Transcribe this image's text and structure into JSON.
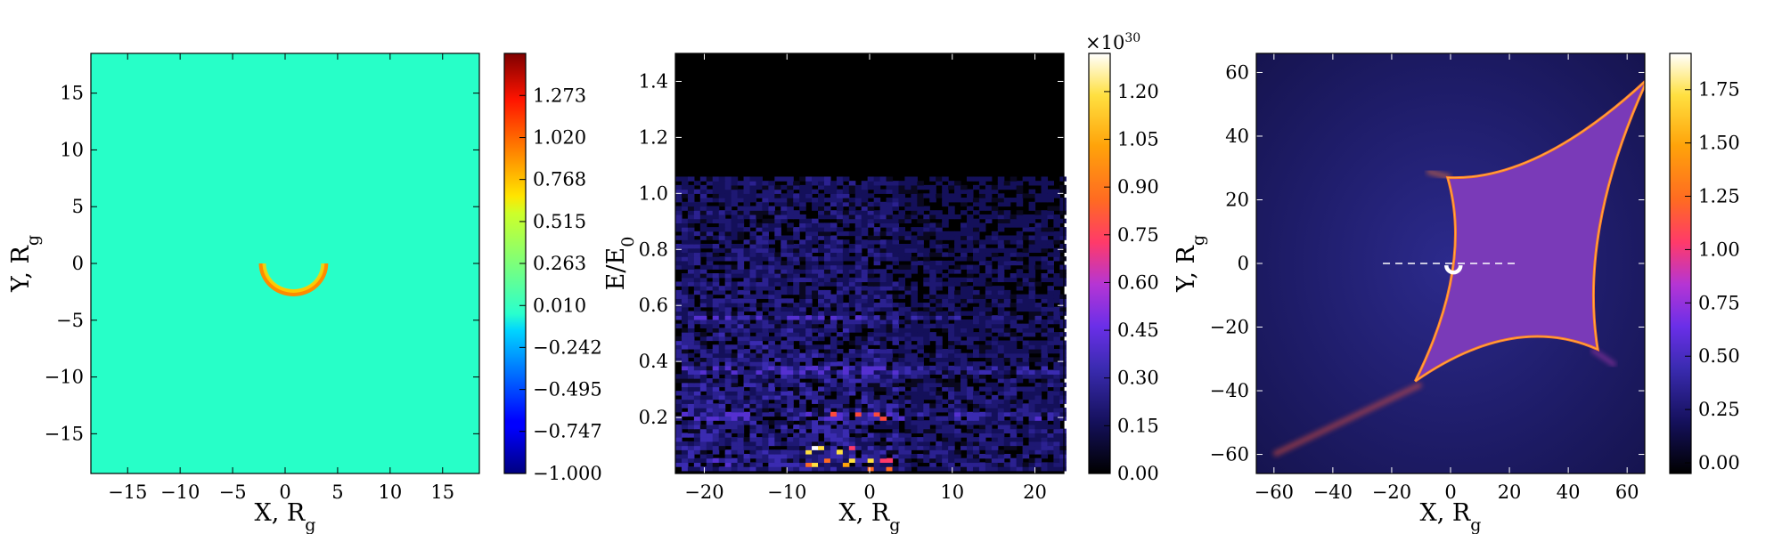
{
  "chart_data": [
    {
      "type": "heatmap",
      "xlabel": "X, R",
      "xlabel_sub": "g",
      "ylabel": "Y, R",
      "ylabel_sub": "g",
      "xlim": [
        -18.5,
        18.5
      ],
      "ylim": [
        -18.5,
        18.5
      ],
      "xticks": [
        -15,
        -10,
        -5,
        0,
        5,
        10,
        15
      ],
      "yticks": [
        -15,
        -10,
        -5,
        0,
        5,
        10,
        15
      ],
      "background_value": 0.01,
      "crescent": {
        "center_x": 0.8,
        "center_y": 0.0,
        "outer_radius": 3.3,
        "inner_radius": 2.6,
        "value": 0.95
      },
      "colorbar": {
        "colormap": "jet",
        "min": -1.0,
        "max": 1.526,
        "ticks": [
          "1.273",
          "1.020",
          "0.768",
          "0.515",
          "0.263",
          "0.010",
          "−0.242",
          "−0.495",
          "−0.747",
          "−1.000"
        ]
      },
      "colors": {
        "background": "#27ffc8",
        "crescent_outer": "#ff8a00",
        "crescent_inner": "#ffd200"
      }
    },
    {
      "type": "heatmap",
      "xlabel": "X, R",
      "xlabel_sub": "g",
      "ylabel": "E/E",
      "ylabel_sub": "0",
      "xlim": [
        -23.5,
        23.5
      ],
      "ylim": [
        0.0,
        1.5
      ],
      "xticks": [
        -20,
        -10,
        0,
        10,
        20
      ],
      "yticks": [
        "0.2",
        "0.4",
        "0.6",
        "0.8",
        "1.0",
        "1.2",
        "1.4"
      ],
      "x_bin_width": 0.75,
      "energy_bin_width": 0.015,
      "energy_cutoff": 1.05,
      "bright_band_energies": [
        0.2,
        0.36,
        0.55
      ],
      "colorbar": {
        "colormap": "gnuplot2",
        "min": 0.0,
        "max": 1.32,
        "multiplier": "×10",
        "multiplier_exp": "30",
        "ticks": [
          "1.20",
          "1.05",
          "0.90",
          "0.75",
          "0.60",
          "0.45",
          "0.30",
          "0.15",
          "0.00"
        ]
      }
    },
    {
      "type": "heatmap",
      "xlabel": "X, R",
      "xlabel_sub": "g",
      "ylabel": "Y, R",
      "ylabel_sub": "g",
      "xlim": [
        -66,
        66
      ],
      "ylim": [
        -66,
        66
      ],
      "xticks": [
        -60,
        -40,
        -20,
        0,
        20,
        40,
        60
      ],
      "yticks": [
        -60,
        -40,
        -20,
        0,
        20,
        40,
        60
      ],
      "caustic_cusps": [
        [
          -1,
          27
        ],
        [
          67,
          58
        ],
        [
          50,
          -27
        ],
        [
          -12,
          -37
        ]
      ],
      "scan_line": {
        "y": 0,
        "x_from": -23,
        "x_to": 23
      },
      "source_marker": {
        "x": 1,
        "y": -2
      },
      "colorbar": {
        "colormap": "gnuplot2",
        "min": -0.05,
        "max": 1.92,
        "ticks": [
          "1.75",
          "1.50",
          "1.25",
          "1.00",
          "0.75",
          "0.50",
          "0.25",
          "0.00"
        ]
      }
    }
  ]
}
